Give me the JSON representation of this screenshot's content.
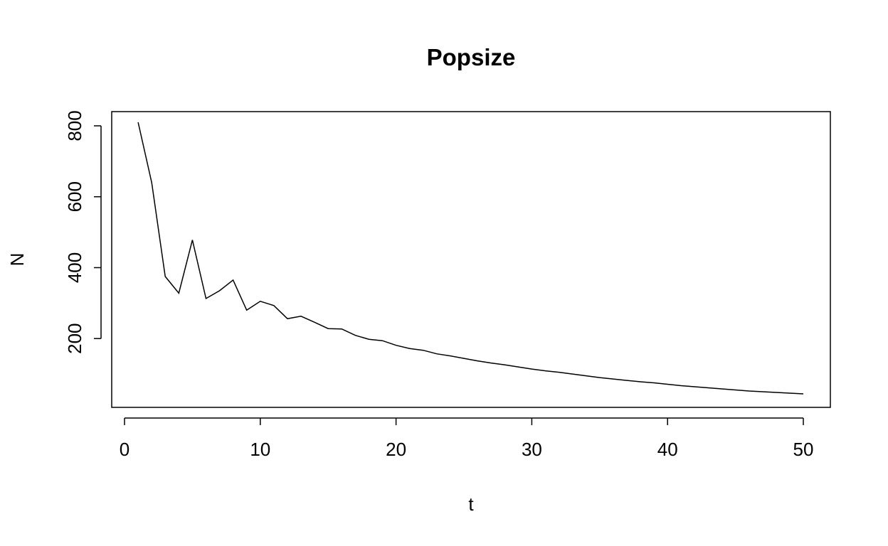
{
  "chart_data": {
    "type": "line",
    "title": "Popsize",
    "xlabel": "t",
    "ylabel": "N",
    "xlim": [
      0,
      50
    ],
    "ylim": [
      40,
      810
    ],
    "x_ticks": [
      0,
      10,
      20,
      30,
      40,
      50
    ],
    "y_ticks": [
      200,
      400,
      600,
      800
    ],
    "grid": false,
    "legend": "none",
    "line_color": "#000000",
    "series": [
      {
        "x": [
          1,
          2,
          3,
          4,
          5,
          6,
          7,
          8,
          9,
          10,
          11,
          12,
          13,
          14,
          15,
          16,
          17,
          18,
          19,
          20,
          21,
          22,
          23,
          24,
          25,
          26,
          27,
          28,
          29,
          30,
          31,
          32,
          33,
          34,
          35,
          36,
          37,
          38,
          39,
          40,
          41,
          42,
          43,
          44,
          45,
          46,
          47,
          48,
          49,
          50
        ],
        "values": [
          810,
          640,
          375,
          328,
          478,
          313,
          335,
          365,
          280,
          305,
          293,
          256,
          263,
          246,
          228,
          227,
          209,
          198,
          194,
          181,
          172,
          167,
          157,
          151,
          144,
          137,
          131,
          126,
          120,
          114,
          109,
          105,
          100,
          95,
          90,
          86,
          82,
          78,
          75,
          71,
          67,
          64,
          61,
          58,
          55,
          52,
          50,
          48,
          46,
          44
        ]
      }
    ]
  }
}
